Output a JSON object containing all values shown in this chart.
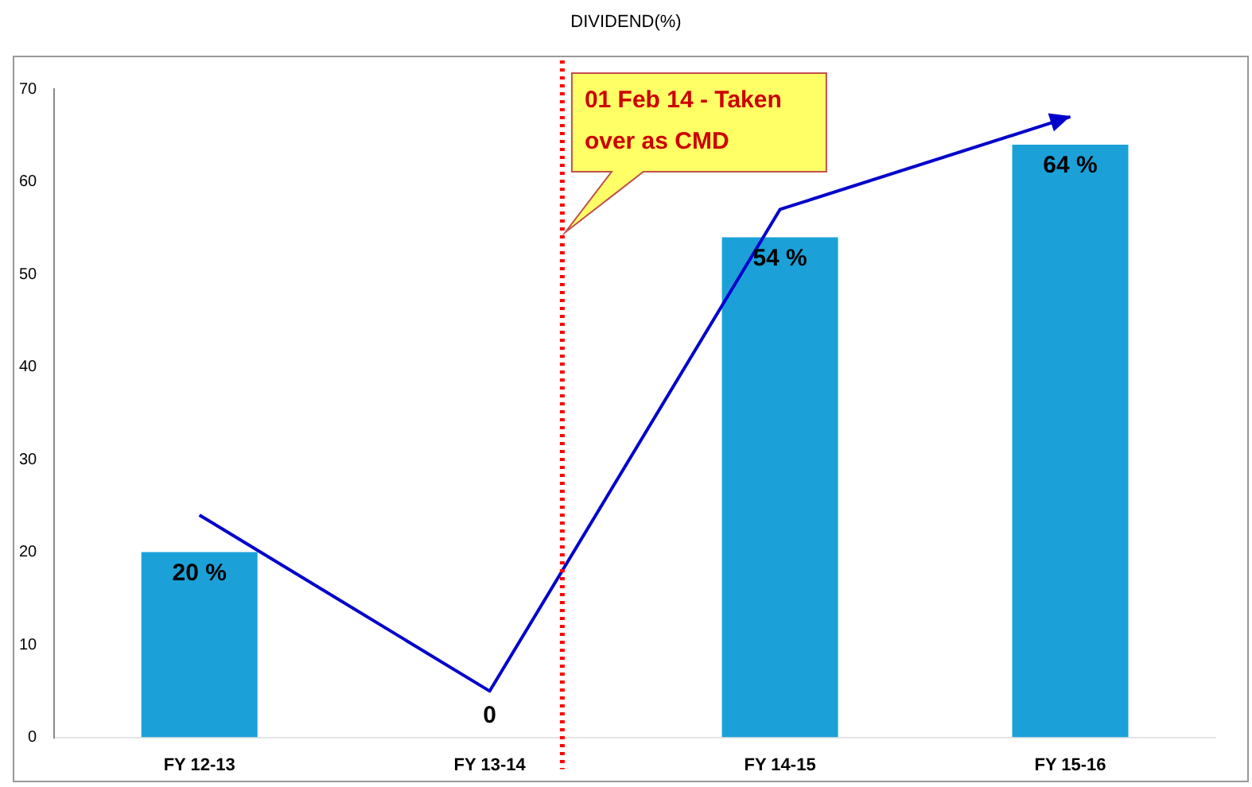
{
  "chart_data": {
    "type": "bar",
    "title": "DIVIDEND(%)",
    "categories": [
      "FY 12-13",
      "FY 13-14",
      "FY 14-15",
      "FY 15-16"
    ],
    "series": [
      {
        "color": "#1ba1d8",
        "values": [
          20,
          0,
          54,
          64
        ],
        "value_labels": [
          "20 %",
          "0",
          "54 %",
          "64 %"
        ]
      },
      {
        "type": "line",
        "color": "#0000cc",
        "values": [
          24,
          5,
          57,
          67
        ]
      }
    ],
    "ylim": [
      0,
      70
    ],
    "yticks": [
      0,
      10,
      20,
      30,
      40,
      50,
      60,
      70
    ],
    "grid": false,
    "legend": false,
    "ref_lines": [
      {
        "axis": "x",
        "value": "FY 13-14",
        "label": "01 Feb 14 - Taken over as CMD",
        "color": "#ff0000",
        "line_style": "dotted"
      }
    ]
  }
}
